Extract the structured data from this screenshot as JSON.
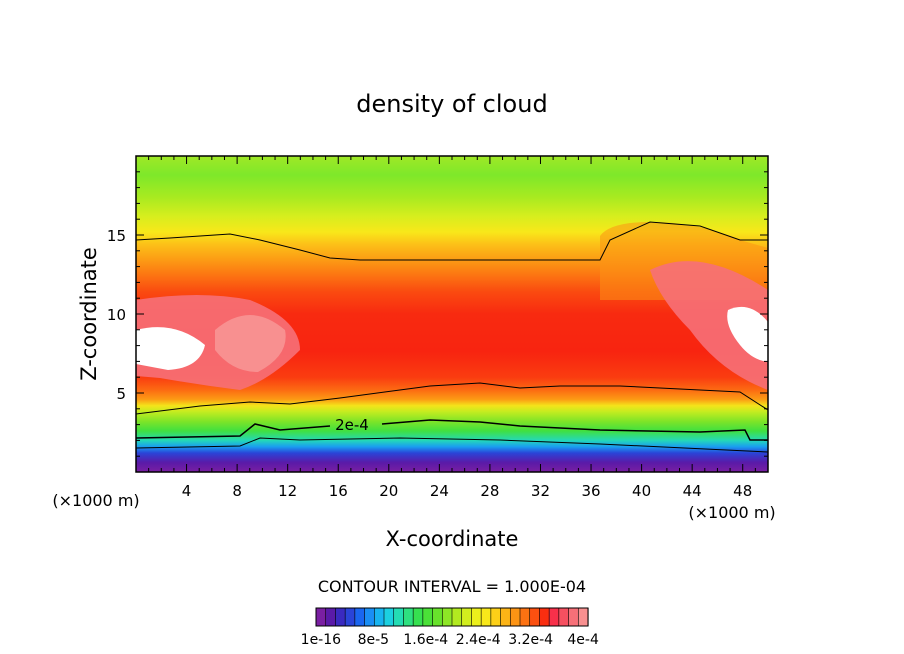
{
  "chart_data": {
    "type": "heatmap",
    "title": "density of cloud",
    "xlabel": "X-coordinate",
    "ylabel": "Z-coordinate",
    "x_unit_left": "(×1000 m)",
    "x_unit_right": "(×1000 m)",
    "xlim": [
      0,
      50
    ],
    "ylim": [
      0,
      20
    ],
    "x_ticks": [
      "4",
      "8",
      "12",
      "16",
      "20",
      "24",
      "28",
      "32",
      "36",
      "40",
      "44",
      "48"
    ],
    "x_tick_values": [
      4,
      8,
      12,
      16,
      20,
      24,
      28,
      32,
      36,
      40,
      44,
      48
    ],
    "y_ticks": [
      "5",
      "10",
      "15"
    ],
    "y_tick_values": [
      5,
      10,
      15
    ],
    "contour_interval_text": "CONTOUR INTERVAL = 1.000E-04",
    "contour_label": "2e-4",
    "colorbar_labels": [
      "1e-16",
      "8e-5",
      "1.6e-4",
      "2.4e-4",
      "3.2e-4",
      "4e-4"
    ],
    "colorbar_label_values": [
      0,
      8e-05,
      0.00016,
      0.00024,
      0.00032,
      0.0004
    ],
    "colorbar_colors": [
      "#7a1fa2",
      "#5a1aa8",
      "#3a2ac0",
      "#2a44d8",
      "#1a66f0",
      "#1a8ef5",
      "#18b4f0",
      "#1cd0e0",
      "#24dcb4",
      "#2ee080",
      "#36e050",
      "#4ae038",
      "#68e22c",
      "#8ee626",
      "#b2ea20",
      "#d2ee1e",
      "#ecf01c",
      "#f8e81a",
      "#fcd018",
      "#fcb416",
      "#fc9414",
      "#fc7212",
      "#fc5010",
      "#fa2e10",
      "#f8304a",
      "#f65060",
      "#f67078",
      "#f89090"
    ],
    "colors": {
      "high_white": "#ffffff",
      "frame": "#000000"
    }
  }
}
